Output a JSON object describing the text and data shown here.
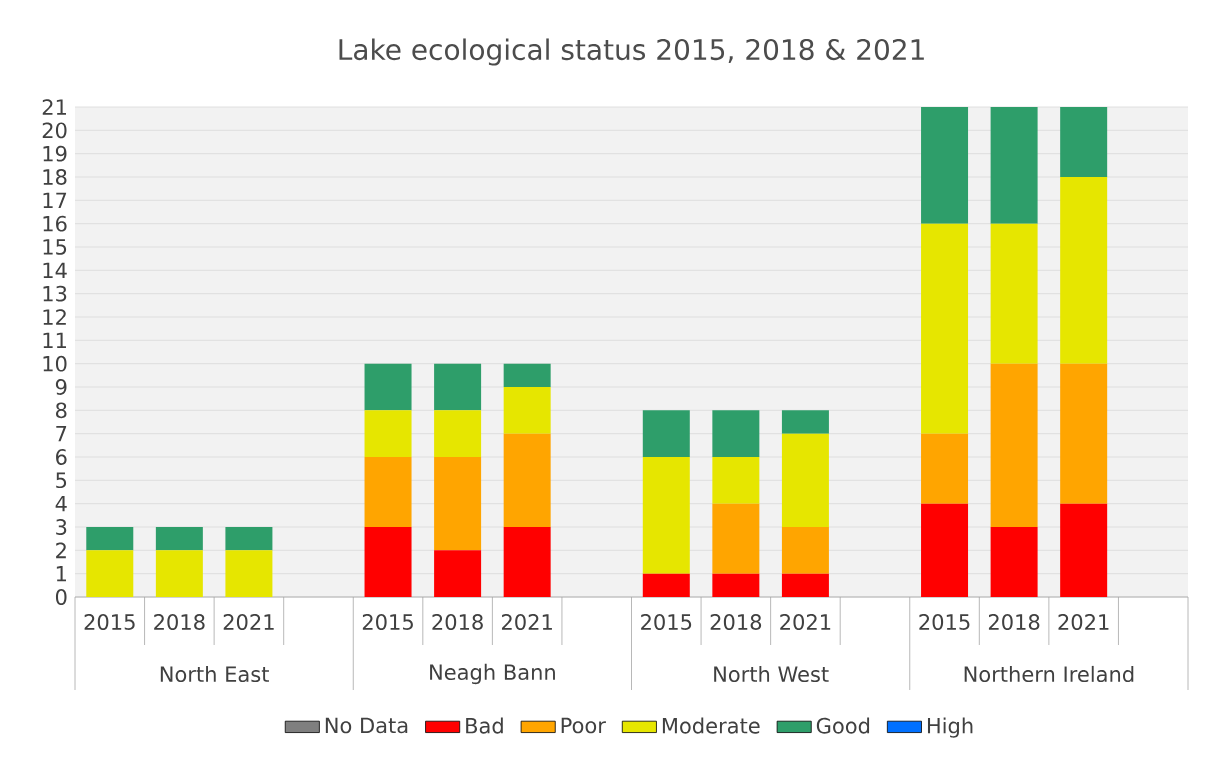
{
  "chart_data": {
    "type": "bar",
    "title": "Lake ecological status 2015, 2018 & 2021",
    "categories": [
      "2015",
      "2018",
      "2021",
      null,
      "2015",
      "2018",
      "2021",
      null,
      "2015",
      "2018",
      "2021",
      null,
      "2015",
      "2018",
      "2021",
      null
    ],
    "annotations": [
      "North East",
      "Neagh Bann",
      "North West",
      "Northern Ireland"
    ],
    "stacked": true,
    "grid": "y",
    "legend": "bottom",
    "ylim": [
      0,
      21
    ],
    "yticks": [
      0,
      1,
      2,
      3,
      4,
      5,
      6,
      7,
      8,
      9,
      10,
      11,
      12,
      13,
      14,
      15,
      16,
      17,
      18,
      19,
      20,
      21
    ],
    "series": [
      {
        "name": "No Data",
        "color": "#7f7f7f",
        "values": [
          0,
          0,
          0,
          null,
          0,
          0,
          0,
          null,
          0,
          0,
          0,
          null,
          0,
          0,
          0,
          null
        ]
      },
      {
        "name": "Bad",
        "color": "#ff0000",
        "values": [
          0,
          0,
          0,
          null,
          3,
          2,
          3,
          null,
          1,
          1,
          1,
          null,
          4,
          3,
          4,
          null
        ]
      },
      {
        "name": "Poor",
        "color": "#ffa500",
        "values": [
          0,
          0,
          0,
          null,
          3,
          4,
          4,
          null,
          0,
          3,
          2,
          null,
          3,
          7,
          6,
          null
        ]
      },
      {
        "name": "Moderate",
        "color": "#e6e600",
        "values": [
          2,
          2,
          2,
          null,
          2,
          2,
          2,
          null,
          5,
          2,
          4,
          null,
          9,
          6,
          8,
          null
        ]
      },
      {
        "name": "Good",
        "color": "#2e9e6a",
        "values": [
          1,
          1,
          1,
          null,
          2,
          2,
          1,
          null,
          2,
          2,
          1,
          null,
          5,
          5,
          3,
          null
        ]
      },
      {
        "name": "High",
        "color": "#0070ff",
        "values": [
          0,
          0,
          0,
          null,
          0,
          0,
          0,
          null,
          0,
          0,
          0,
          null,
          0,
          0,
          0,
          null
        ]
      }
    ]
  }
}
